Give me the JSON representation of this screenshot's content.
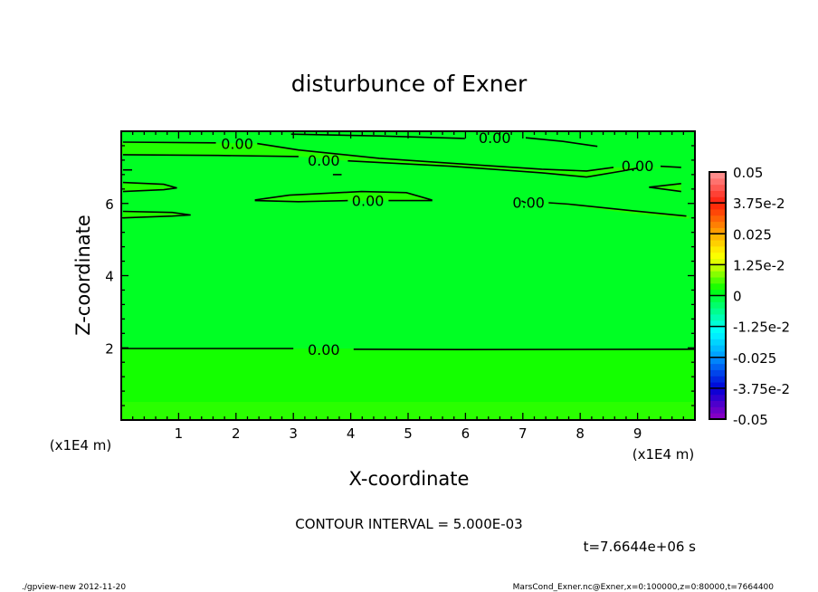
{
  "chart_data": {
    "type": "heatmap",
    "subtype": "contour",
    "title": "disturbunce of Exner",
    "xlabel": "X-coordinate",
    "ylabel": "Z-coordinate",
    "x_unit_label": "(x1E4 m)",
    "y_unit_label": "(x1E4 m)",
    "xlim": [
      0,
      10
    ],
    "ylim": [
      0,
      8
    ],
    "x_ticks": [
      1,
      2,
      3,
      4,
      5,
      6,
      7,
      8,
      9
    ],
    "y_ticks": [
      2,
      4,
      6
    ],
    "contour_interval_text": "CONTOUR INTERVAL = 5.000E-03",
    "time_text": "t=7.6644e+06 s",
    "field_fill": {
      "main": "#00ff24",
      "lower_layer": "#14ff00",
      "bottom_layer": "#2aff00",
      "positive_band": "#22ff00"
    },
    "lower_layer_top_z": 1.98,
    "bottom_layer_top_z": 0.5,
    "contour_label": "0.00",
    "contours": [
      {
        "points": [
          [
            0.03,
            7.7
          ],
          [
            1.65,
            7.68
          ]
        ],
        "label_at": [
          2.02,
          7.66
        ]
      },
      {
        "points": [
          [
            2.37,
            7.66
          ],
          [
            3.09,
            7.48
          ],
          [
            4.5,
            7.25
          ],
          [
            6.07,
            7.08
          ],
          [
            7.33,
            6.95
          ],
          [
            8.11,
            6.9
          ],
          [
            8.58,
            7.0
          ]
        ],
        "label_at": [
          9.0,
          7.05
        ]
      },
      {
        "points": [
          [
            9.4,
            7.03
          ],
          [
            9.76,
            7.0
          ]
        ]
      },
      {
        "points": [
          [
            0.03,
            7.35
          ],
          [
            1.68,
            7.33
          ],
          [
            3.09,
            7.3
          ]
        ],
        "label_at": [
          3.53,
          7.2
        ]
      },
      {
        "points": [
          [
            3.95,
            7.18
          ],
          [
            5.76,
            7.03
          ],
          [
            7.33,
            6.85
          ],
          [
            8.11,
            6.73
          ],
          [
            8.74,
            6.9
          ],
          [
            9.0,
            6.98
          ]
        ]
      },
      {
        "points": [
          [
            3.69,
            6.8
          ],
          [
            3.84,
            6.8
          ]
        ]
      },
      {
        "points": [
          [
            0.03,
            6.93
          ],
          [
            0.19,
            6.93
          ]
        ]
      },
      {
        "points": [
          [
            0.03,
            6.58
          ],
          [
            0.74,
            6.53
          ],
          [
            0.97,
            6.43
          ],
          [
            0.74,
            6.38
          ],
          [
            0.03,
            6.33
          ]
        ],
        "fill": true
      },
      {
        "points": [
          [
            3.95,
            6.08
          ],
          [
            3.09,
            6.05
          ],
          [
            2.34,
            6.08
          ],
          [
            2.34,
            6.1
          ],
          [
            2.93,
            6.23
          ],
          [
            4.19,
            6.33
          ],
          [
            4.97,
            6.3
          ],
          [
            5.41,
            6.1
          ],
          [
            5.41,
            6.08
          ],
          [
            4.66,
            6.08
          ]
        ],
        "fill": true,
        "label_at": [
          4.3,
          6.08
        ]
      },
      {
        "points": [
          [
            9.76,
            6.55
          ],
          [
            9.2,
            6.45
          ],
          [
            9.76,
            6.33
          ]
        ],
        "fill": true
      },
      {
        "points": [
          [
            7.45,
            6.02
          ],
          [
            7.8,
            5.98
          ],
          [
            8.89,
            5.8
          ],
          [
            9.85,
            5.65
          ]
        ],
        "label_at": [
          7.1,
          6.03
        ]
      },
      {
        "points": [
          [
            6.98,
            6.07
          ],
          [
            7.05,
            6.02
          ]
        ]
      },
      {
        "points": [
          [
            0.03,
            5.78
          ],
          [
            0.89,
            5.75
          ],
          [
            1.21,
            5.68
          ],
          [
            0.89,
            5.65
          ],
          [
            0.03,
            5.6
          ]
        ],
        "fill": true
      },
      {
        "points": [
          [
            2.96,
            7.92
          ],
          [
            4.5,
            7.87
          ],
          [
            5.99,
            7.8
          ]
        ],
        "label_at": [
          6.51,
          7.82
        ]
      },
      {
        "points": [
          [
            7.05,
            7.82
          ],
          [
            7.7,
            7.72
          ],
          [
            8.3,
            7.58
          ]
        ]
      },
      {
        "points": [
          [
            0.0,
            1.98
          ],
          [
            3.0,
            1.98
          ]
        ],
        "label_at": [
          3.53,
          1.95
        ]
      },
      {
        "points": [
          [
            4.05,
            1.96
          ],
          [
            6.0,
            1.95
          ],
          [
            10.0,
            1.96
          ]
        ]
      }
    ],
    "colorbar": {
      "min": -0.05,
      "max": 0.05,
      "shade_step": 0.0025,
      "tick_values": [
        0.05,
        0.0375,
        0.025,
        0.0125,
        0,
        -0.0125,
        -0.025,
        -0.0375,
        -0.05
      ],
      "tick_labels": [
        "0.05",
        "3.75e-2",
        "0.025",
        "1.25e-2",
        "0",
        "-1.25e-2",
        "-0.025",
        "-3.75e-2",
        "-0.05"
      ]
    }
  },
  "footer": {
    "left": "./gpview-new  2012-11-20",
    "right": "MarsCond_Exner.nc@Exner,x=0:100000,z=0:80000,t=7664400"
  }
}
